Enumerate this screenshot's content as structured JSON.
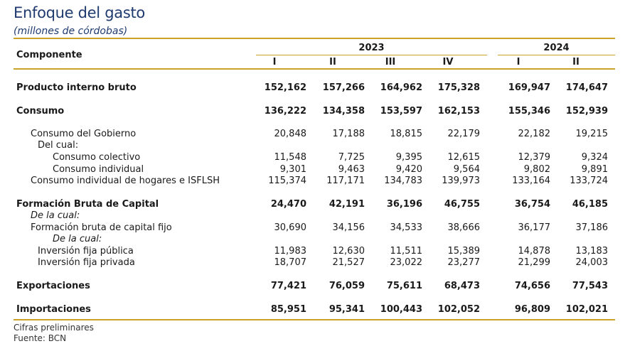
{
  "title": "Enfoque del gasto",
  "subtitle": "(millones de córdobas)",
  "header": {
    "component": "Componente",
    "year_a": "2023",
    "year_b": "2024",
    "quarters": [
      "I",
      "II",
      "III",
      "IV",
      "I",
      "II"
    ]
  },
  "rows": [
    {
      "label": "Producto interno bruto",
      "values": [
        "152,162",
        "157,266",
        "164,962",
        "175,328",
        "169,947",
        "174,647"
      ],
      "style": "bold",
      "indent": 0
    },
    {
      "label": "Consumo",
      "values": [
        "136,222",
        "134,358",
        "153,597",
        "162,153",
        "155,346",
        "152,939"
      ],
      "style": "bold",
      "indent": 0
    },
    {
      "label": "Consumo del Gobierno",
      "values": [
        "20,848",
        "17,188",
        "18,815",
        "22,179",
        "22,182",
        "19,215"
      ],
      "style": "normal",
      "indent": 1
    },
    {
      "label": "Del cual:",
      "values": [],
      "style": "normal",
      "indent": 2
    },
    {
      "label": "Consumo colectivo",
      "values": [
        "11,548",
        "7,725",
        "9,395",
        "12,615",
        "12,379",
        "9,324"
      ],
      "style": "normal",
      "indent": 3
    },
    {
      "label": "Consumo individual",
      "values": [
        "9,301",
        "9,463",
        "9,420",
        "9,564",
        "9,802",
        "9,891"
      ],
      "style": "normal",
      "indent": 3
    },
    {
      "label": "Consumo individual de hogares e ISFLSH",
      "values": [
        "115,374",
        "117,171",
        "134,783",
        "139,973",
        "133,164",
        "133,724"
      ],
      "style": "normal",
      "indent": 1
    },
    {
      "label": "Formación Bruta de Capital",
      "values": [
        "24,470",
        "42,191",
        "36,196",
        "46,755",
        "36,754",
        "46,185"
      ],
      "style": "bold",
      "indent": 0
    },
    {
      "label": "De la cual:",
      "values": [],
      "style": "italic",
      "indent": 1
    },
    {
      "label": "Formación bruta de capital fijo",
      "values": [
        "30,690",
        "34,156",
        "34,533",
        "38,666",
        "36,177",
        "37,186"
      ],
      "style": "normal",
      "indent": 1
    },
    {
      "label": "De la cual:",
      "values": [],
      "style": "italic",
      "indent": 3
    },
    {
      "label": "Inversión fija pública",
      "values": [
        "11,983",
        "12,630",
        "11,511",
        "15,389",
        "14,878",
        "13,183"
      ],
      "style": "normal",
      "indent": 2
    },
    {
      "label": "Inversión fija privada",
      "values": [
        "18,707",
        "21,527",
        "23,022",
        "23,277",
        "21,299",
        "24,003"
      ],
      "style": "normal",
      "indent": 2
    },
    {
      "label": "Exportaciones",
      "values": [
        "77,421",
        "76,059",
        "75,611",
        "68,473",
        "74,656",
        "77,543"
      ],
      "style": "bold",
      "indent": 0
    },
    {
      "label": "Importaciones",
      "values": [
        "85,951",
        "95,341",
        "100,443",
        "102,052",
        "96,809",
        "102,021"
      ],
      "style": "bold",
      "indent": 0
    }
  ],
  "footnotes": [
    "Cifras preliminares",
    "Fuente: BCN"
  ],
  "colors": {
    "title": "#1f3a6e",
    "rule": "#c9a227"
  }
}
